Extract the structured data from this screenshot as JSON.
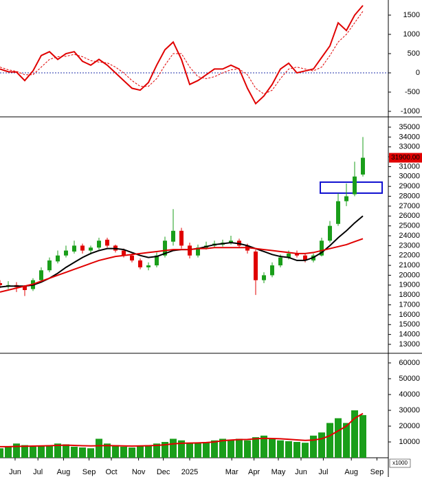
{
  "chart_data": [
    {
      "type": "line",
      "ylim": [
        -1107,
        1893
      ],
      "yticks": [
        1500,
        1000,
        500,
        0,
        -500,
        -1000
      ],
      "series": [
        {
          "color": "#e00000",
          "style": "solid",
          "values": [
            100,
            30,
            20,
            -200,
            50,
            450,
            550,
            350,
            500,
            550,
            300,
            200,
            350,
            200,
            0,
            -200,
            -400,
            -450,
            -250,
            200,
            600,
            800,
            350,
            -300,
            -200,
            -50,
            100,
            100,
            200,
            100,
            -400,
            -800,
            -600,
            -300,
            100,
            250,
            0,
            50,
            100,
            400,
            700,
            1300,
            1100,
            1500,
            1750
          ]
        },
        {
          "color": "#e00000",
          "style": "dashed",
          "values": [
            150,
            80,
            40,
            -50,
            -50,
            150,
            350,
            420,
            430,
            480,
            420,
            320,
            280,
            260,
            150,
            0,
            -200,
            -350,
            -350,
            -150,
            200,
            500,
            500,
            150,
            -100,
            -150,
            -100,
            0,
            80,
            100,
            -50,
            -400,
            -550,
            -450,
            -150,
            100,
            150,
            100,
            50,
            150,
            450,
            800,
            1000,
            1300,
            1600
          ]
        }
      ],
      "zero_line": 0,
      "zero_color": "#1f2fa8"
    },
    {
      "type": "candlestick",
      "ylim": [
        12234,
        35905
      ],
      "yticks": [
        13000,
        14000,
        15000,
        16000,
        17000,
        18000,
        19000,
        20000,
        21000,
        22000,
        23000,
        24000,
        25000,
        26000,
        27000,
        28000,
        29000,
        30000,
        31000,
        32000,
        33000,
        34000,
        35000
      ],
      "up_color": "#1a9e1a",
      "down_color": "#e00000",
      "open": [
        19200,
        19000,
        19000,
        18900,
        18600,
        19500,
        20500,
        21400,
        22000,
        22400,
        23000,
        22500,
        22800,
        23600,
        23000,
        22500,
        22000,
        21500,
        20800,
        21000,
        22000,
        23400,
        24500,
        23000,
        22000,
        22800,
        23000,
        23100,
        23300,
        23500,
        23000,
        22400,
        19500,
        20000,
        21000,
        21800,
        22200,
        22000,
        21500,
        22000,
        23500,
        25200,
        27500,
        28200,
        30200
      ],
      "high": [
        19500,
        19400,
        19300,
        19000,
        19700,
        20800,
        21800,
        22500,
        23000,
        23500,
        23200,
        23000,
        23800,
        23800,
        23100,
        22700,
        22200,
        21700,
        21300,
        22300,
        23900,
        26700,
        24800,
        23300,
        23100,
        23400,
        23500,
        23600,
        24000,
        23700,
        23200,
        22600,
        20300,
        21300,
        22100,
        22500,
        22500,
        22200,
        22200,
        23800,
        25500,
        28300,
        29300,
        31500,
        34000
      ],
      "low": [
        18700,
        18600,
        18300,
        17900,
        18400,
        19300,
        20300,
        21200,
        21800,
        22200,
        22200,
        22100,
        22600,
        22800,
        22300,
        21800,
        21300,
        20600,
        20500,
        20800,
        21800,
        23000,
        22700,
        21700,
        21800,
        22600,
        22800,
        22900,
        23100,
        22800,
        22200,
        18000,
        19200,
        19800,
        20800,
        21600,
        21800,
        21300,
        21300,
        21900,
        23300,
        25000,
        27000,
        28000,
        30000
      ],
      "close": [
        19000,
        19000,
        18800,
        18500,
        19500,
        20500,
        21500,
        22000,
        22500,
        23000,
        22500,
        22800,
        23500,
        23000,
        22500,
        22000,
        21500,
        20800,
        21000,
        22000,
        23500,
        24500,
        23000,
        22000,
        22800,
        23000,
        23200,
        23300,
        23500,
        23000,
        22500,
        19500,
        20000,
        21000,
        21800,
        22200,
        22000,
        21500,
        22000,
        23500,
        25000,
        27500,
        28000,
        30000,
        31900
      ],
      "series": [
        {
          "color": "#000000",
          "values": [
            18800,
            18900,
            18900,
            18900,
            19000,
            19300,
            19700,
            20200,
            20800,
            21300,
            21800,
            22200,
            22500,
            22700,
            22700,
            22600,
            22300,
            22000,
            21800,
            21900,
            22200,
            22500,
            22600,
            22600,
            22700,
            22900,
            23100,
            23200,
            23300,
            23200,
            23000,
            22700,
            22400,
            22100,
            21900,
            21800,
            21500,
            21500,
            21800,
            22300,
            23000,
            23800,
            24500,
            25300,
            26000
          ]
        },
        {
          "color": "#e00000",
          "values": [
            18300,
            18500,
            18700,
            18900,
            19100,
            19400,
            19700,
            20000,
            20300,
            20600,
            20900,
            21200,
            21500,
            21700,
            21900,
            22000,
            22100,
            22200,
            22300,
            22400,
            22500,
            22600,
            22600,
            22600,
            22700,
            22700,
            22800,
            22800,
            22800,
            22800,
            22800,
            22700,
            22600,
            22500,
            22400,
            22300,
            22200,
            22200,
            22300,
            22500,
            22700,
            22900,
            23100,
            23400,
            23700
          ]
        }
      ],
      "last_price": 31900,
      "last_price_label": "31900.00"
    },
    {
      "type": "bar",
      "ylim": [
        0,
        65217
      ],
      "yticks": [
        10000,
        20000,
        30000,
        40000,
        50000,
        60000
      ],
      "color": "#1a9e1a",
      "unit_label": "x1000",
      "values": [
        6000,
        7000,
        9000,
        8000,
        7000,
        7500,
        8000,
        9000,
        8500,
        7000,
        6500,
        6000,
        12000,
        9000,
        8000,
        7000,
        6500,
        7500,
        8000,
        9000,
        10000,
        12000,
        11000,
        9000,
        9500,
        10000,
        11000,
        12000,
        11500,
        12000,
        11000,
        13000,
        14000,
        12000,
        11000,
        10500,
        10000,
        9500,
        14000,
        16000,
        22000,
        25000,
        22000,
        30000,
        27000
      ],
      "series": [
        {
          "color": "#e00000",
          "values": [
            7000,
            7000,
            7200,
            7300,
            7400,
            7500,
            7600,
            7800,
            8000,
            7800,
            7600,
            7500,
            7600,
            7700,
            7600,
            7500,
            7400,
            7500,
            7600,
            7800,
            8200,
            8800,
            9200,
            9300,
            9400,
            9600,
            10000,
            10800,
            11200,
            11500,
            11600,
            12000,
            12300,
            12200,
            12000,
            11700,
            11300,
            11000,
            11200,
            12000,
            14000,
            17000,
            20000,
            25000,
            28000
          ]
        }
      ],
      "xlim": [
        0,
        47
      ],
      "xticks": [
        {
          "value": 1.83,
          "label": "Jun"
        },
        {
          "value": 4.6,
          "label": "Jul"
        },
        {
          "value": 7.7,
          "label": "Aug"
        },
        {
          "value": 10.8,
          "label": "Sep"
        },
        {
          "value": 13.5,
          "label": "Oct"
        },
        {
          "value": 16.8,
          "label": "Nov"
        },
        {
          "value": 19.8,
          "label": "Dec"
        },
        {
          "value": 23,
          "label": "2025"
        },
        {
          "value": 28.1,
          "label": "Mar"
        },
        {
          "value": 30.8,
          "label": "Apr"
        },
        {
          "value": 33.75,
          "label": "May"
        },
        {
          "value": 36.5,
          "label": "Jun"
        },
        {
          "value": 39.2,
          "label": "Jul"
        },
        {
          "value": 42.6,
          "label": "Aug"
        },
        {
          "value": 45.7,
          "label": "Sep"
        }
      ]
    }
  ]
}
